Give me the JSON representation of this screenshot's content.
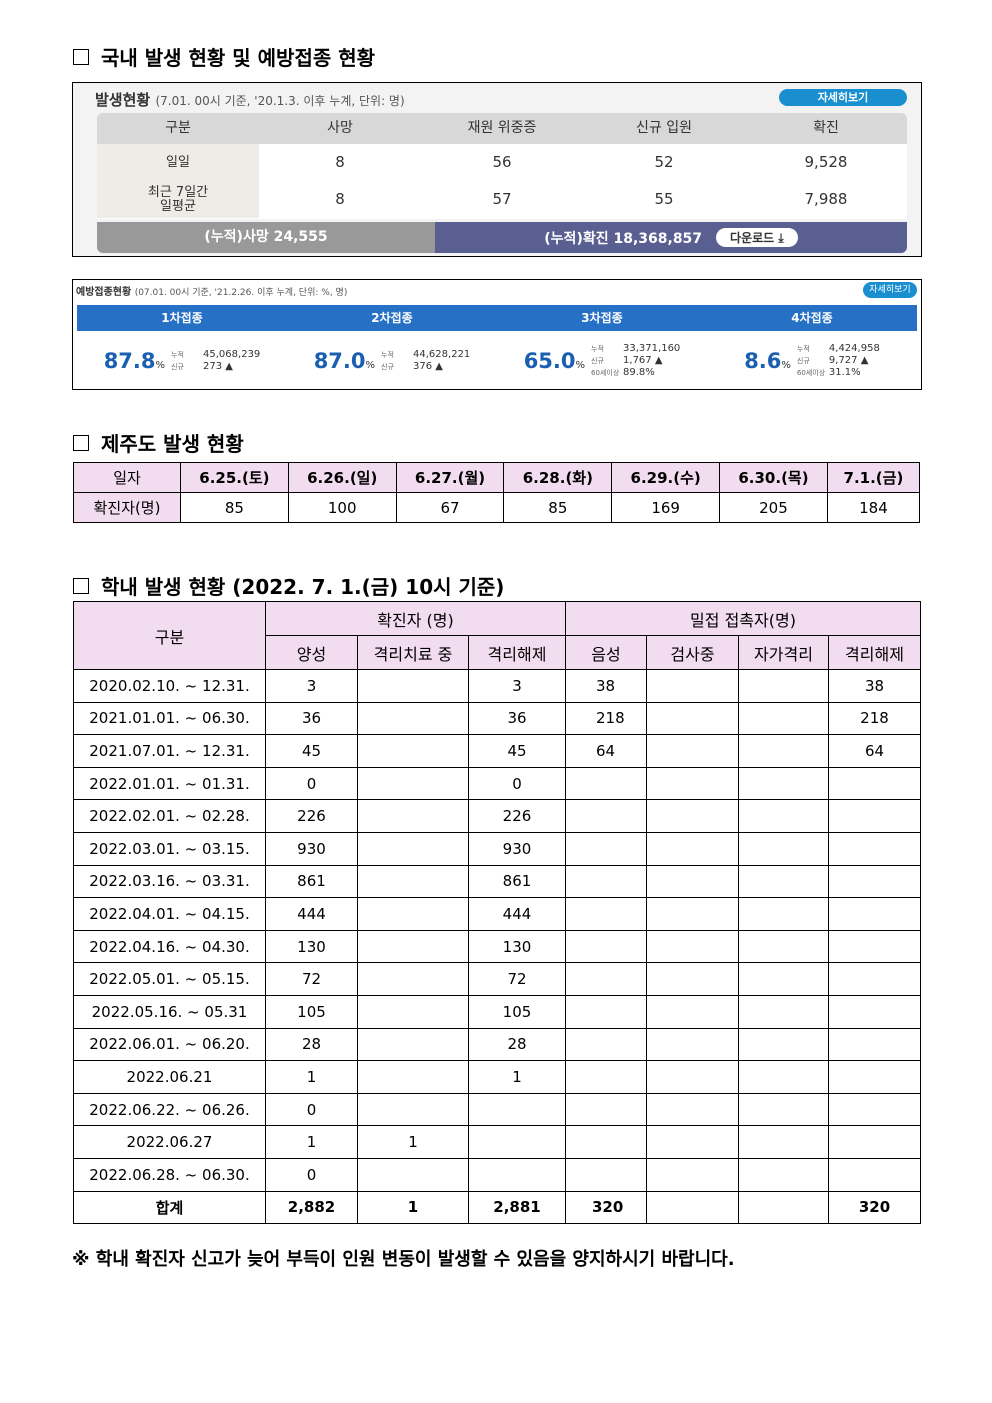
{
  "section1": {
    "heading": "국내 발생 현황 및 예방접종 현황"
  },
  "occurrence": {
    "title": "발생현황",
    "subtitle": "(7.01. 00시 기준, '20.1.3. 이후 누계, 단위: 명)",
    "more_label": "자세히보기",
    "headers": [
      "구분",
      "사망",
      "재원 위중증",
      "신규 입원",
      "확진"
    ],
    "rows": [
      [
        "일일",
        "8",
        "56",
        "52",
        "9,528"
      ],
      [
        "최근 7일간\n일평균",
        "8",
        "57",
        "55",
        "7,988"
      ]
    ],
    "cum_death": "(누적)사망  24,555",
    "cum_confirmed": "(누적)확진  18,368,857",
    "download_label": "다운로드 ⤓"
  },
  "vaccine": {
    "title": "예방접종현황",
    "subtitle": "(07.01. 00시 기준, '21.2.26. 이후 누계, 단위: %, 명)",
    "more_label": "자세히보기",
    "doses": [
      {
        "label": "1차접종",
        "pct": "87.8",
        "cum": "45,068,239",
        "new": "273 ▲"
      },
      {
        "label": "2차접종",
        "pct": "87.0",
        "cum": "44,628,221",
        "new": "376 ▲"
      },
      {
        "label": "3차접종",
        "pct": "65.0",
        "cum": "33,371,160",
        "new": "1,767 ▲",
        "over60": "89.8%"
      },
      {
        "label": "4차접종",
        "pct": "8.6",
        "cum": "4,424,958",
        "new": "9,727 ▲",
        "over60": "31.1%"
      }
    ],
    "labels": {
      "cum": "누적",
      "new": "신규",
      "over60": "60세이상",
      "pct_unit": "%"
    }
  },
  "section2": {
    "heading": "제주도 발생 현황"
  },
  "jeju": {
    "header": [
      "일자",
      "6.25.(토)",
      "6.26.(일)",
      "6.27.(월)",
      "6.28.(화)",
      "6.29.(수)",
      "6.30.(목)",
      "7.1.(금)"
    ],
    "row": [
      "확진자(명)",
      "85",
      "100",
      "67",
      "85",
      "169",
      "205",
      "184"
    ]
  },
  "section3": {
    "heading": "학내 발생 현황 (2022. 7. 1.(금) 10시 기준)"
  },
  "school": {
    "col0": "구분",
    "group1": "확진자 (명)",
    "group2": "밀접 접촉자(명)",
    "subheaders": [
      "양성",
      "격리치료 중",
      "격리해제",
      "음성",
      "검사중",
      "자가격리",
      "격리해제"
    ],
    "rows": [
      [
        "2020.02.10. ~ 12.31.",
        "3",
        "",
        "3",
        "38",
        "",
        "",
        "38"
      ],
      [
        "2021.01.01. ~ 06.30.",
        "36",
        "",
        "36",
        "218",
        "",
        "",
        "218"
      ],
      [
        "2021.07.01. ~ 12.31.",
        "45",
        "",
        "45",
        "64",
        "",
        "",
        "64"
      ],
      [
        "2022.01.01. ~ 01.31.",
        "0",
        "",
        "0",
        "",
        "",
        "",
        ""
      ],
      [
        "2022.02.01. ~ 02.28.",
        "226",
        "",
        "226",
        "",
        "",
        "",
        ""
      ],
      [
        "2022.03.01. ~ 03.15.",
        "930",
        "",
        "930",
        "",
        "",
        "",
        ""
      ],
      [
        "2022.03.16. ~ 03.31.",
        "861",
        "",
        "861",
        "",
        "",
        "",
        ""
      ],
      [
        "2022.04.01. ~ 04.15.",
        "444",
        "",
        "444",
        "",
        "",
        "",
        ""
      ],
      [
        "2022.04.16. ~ 04.30.",
        "130",
        "",
        "130",
        "",
        "",
        "",
        ""
      ],
      [
        "2022.05.01. ~ 05.15.",
        "72",
        "",
        "72",
        "",
        "",
        "",
        ""
      ],
      [
        "2022.05.16. ~ 05.31",
        "105",
        "",
        "105",
        "",
        "",
        "",
        ""
      ],
      [
        "2022.06.01. ~ 06.20.",
        "28",
        "",
        "28",
        "",
        "",
        "",
        ""
      ],
      [
        "2022.06.21",
        "1",
        "",
        "1",
        "",
        "",
        "",
        ""
      ],
      [
        "2022.06.22. ~ 06.26.",
        "0",
        "",
        "",
        "",
        "",
        "",
        ""
      ],
      [
        "2022.06.27",
        "1",
        "1",
        "",
        "",
        "",
        "",
        ""
      ],
      [
        "2022.06.28. ~ 06.30.",
        "0",
        "",
        "",
        "",
        "",
        "",
        ""
      ]
    ],
    "total": [
      "합계",
      "2,882",
      "1",
      "2,881",
      "320",
      "",
      "",
      "320"
    ]
  },
  "note": "※ 학내 확진자 신고가 늦어 부득이 인원 변동이 발생할 수 있음을 양지하시기 바랍니다."
}
